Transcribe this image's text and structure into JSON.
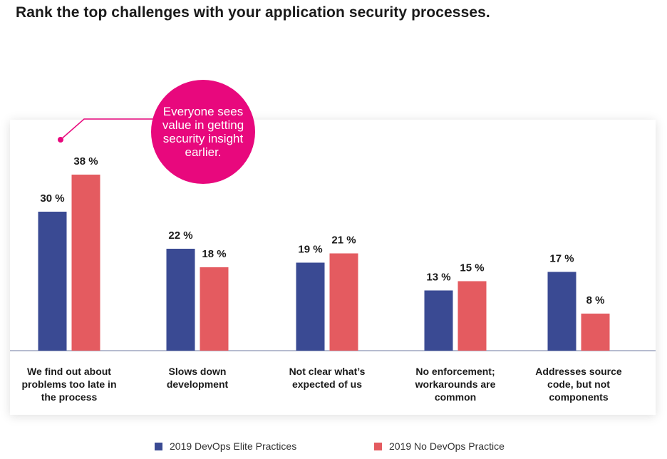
{
  "title": "Rank the top challenges with your application security processes.",
  "callout": {
    "text": "Everyone sees value in getting security insight earlier.",
    "color": "#e8087d"
  },
  "colors": {
    "elite": "#3a4a93",
    "no_devops": "#e45b60",
    "axis": "#8a95b3"
  },
  "chart_data": {
    "type": "bar",
    "categories": [
      [
        "We find out about",
        "problems too late in",
        "the process"
      ],
      [
        "Slows down",
        "development"
      ],
      [
        "Not clear what’s",
        "expected of us"
      ],
      [
        "No enforcement;",
        "workarounds are",
        "common"
      ],
      [
        "Addresses source",
        "code, but not",
        "components"
      ]
    ],
    "series": [
      {
        "name": "2019 DevOps Elite Practices",
        "values": [
          30,
          22,
          19,
          13,
          17
        ]
      },
      {
        "name": "2019 No DevOps Practice",
        "values": [
          38,
          18,
          21,
          15,
          8
        ]
      }
    ],
    "value_suffix": " %",
    "ylim": [
      0,
      40
    ],
    "grid": false,
    "legend_position": "bottom"
  }
}
